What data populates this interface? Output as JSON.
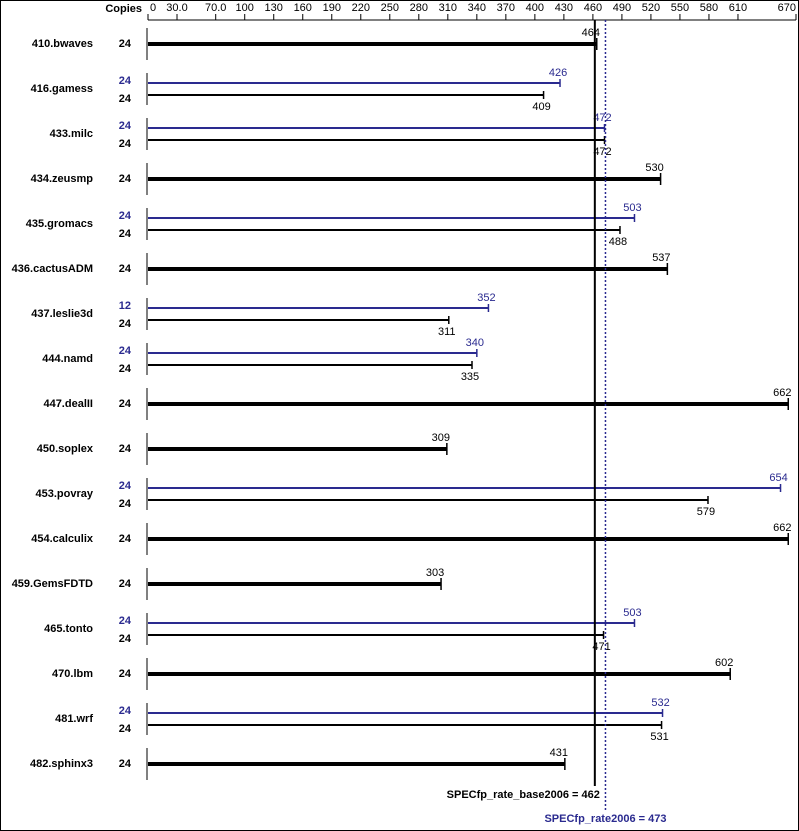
{
  "chart_data": {
    "type": "bar",
    "orientation": "horizontal",
    "copies_label": "Copies",
    "categories": [
      "410.bwaves",
      "416.gamess",
      "433.milc",
      "434.zeusmp",
      "435.gromacs",
      "436.cactusADM",
      "437.leslie3d",
      "444.namd",
      "447.dealII",
      "450.soplex",
      "453.povray",
      "454.calculix",
      "459.GemsFDTD",
      "465.tonto",
      "470.lbm",
      "481.wrf",
      "482.sphinx3"
    ],
    "series": [
      {
        "color": "#000000",
        "copies": [
          24,
          24,
          24,
          24,
          24,
          24,
          24,
          24,
          24,
          24,
          24,
          24,
          24,
          24,
          24,
          24,
          24
        ],
        "values": [
          464,
          409,
          472,
          530,
          488,
          537,
          311,
          335,
          662,
          309,
          579,
          662,
          303,
          471,
          602,
          531,
          431
        ]
      },
      {
        "color": "#2a2a8f",
        "copies": [
          null,
          24,
          24,
          null,
          24,
          null,
          12,
          24,
          null,
          null,
          24,
          null,
          null,
          24,
          null,
          24,
          null
        ],
        "values": [
          null,
          426,
          472,
          null,
          503,
          null,
          352,
          340,
          null,
          null,
          654,
          null,
          null,
          503,
          null,
          532,
          null
        ]
      }
    ],
    "xlim": [
      0,
      670
    ],
    "xticks": [
      0,
      {
        "value": 30,
        "label": "30.0"
      },
      {
        "value": 70,
        "label": "70.0"
      },
      100,
      130,
      160,
      190,
      220,
      250,
      280,
      310,
      340,
      370,
      400,
      430,
      460,
      490,
      520,
      550,
      580,
      610,
      670
    ],
    "reference_lines": [
      {
        "label": "SPECfp_rate_base2006 = 462",
        "value": 462,
        "color": "#000000",
        "style": "solid"
      },
      {
        "label": "SPECfp_rate2006 = 473",
        "value": 473,
        "color": "#2a2a8f",
        "style": "dotted"
      }
    ]
  }
}
